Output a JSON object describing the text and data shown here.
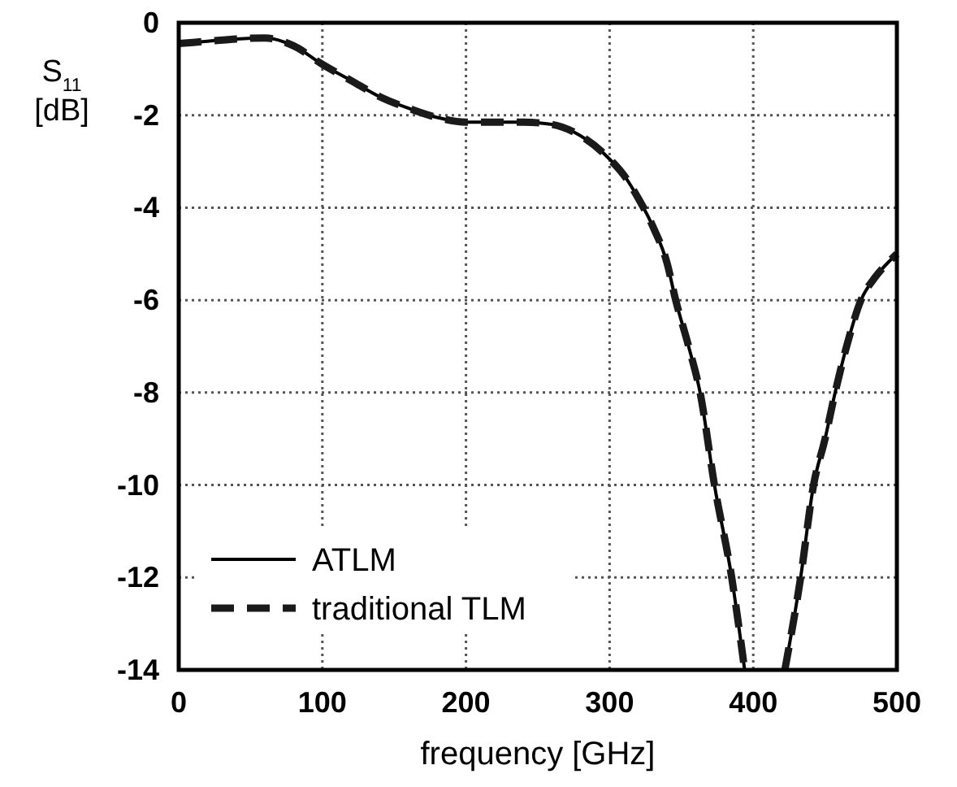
{
  "chart_data": {
    "type": "line",
    "ylabel": "S$_{11}$ [dB]",
    "xlabel": "frequency [GHz]",
    "x": [
      0,
      20,
      40,
      60,
      80,
      100,
      120,
      140,
      160,
      180,
      200,
      220,
      240,
      260,
      280,
      300,
      310,
      320,
      330,
      340,
      346,
      355,
      363,
      373,
      385,
      394,
      410,
      422,
      433,
      442,
      450,
      457,
      465,
      475,
      485,
      495,
      500
    ],
    "series": [
      {
        "name": "ATLM",
        "color": "#000000",
        "line_style": "solid",
        "values": [
          -0.45,
          -0.4,
          -0.35,
          -0.33,
          -0.5,
          -0.9,
          -1.25,
          -1.6,
          -1.85,
          -2.05,
          -2.15,
          -2.15,
          -2.15,
          -2.2,
          -2.45,
          -2.95,
          -3.3,
          -3.8,
          -4.4,
          -5.2,
          -6,
          -7,
          -8,
          -10,
          -12,
          -14,
          null,
          -14,
          -12,
          -10,
          -9,
          -8,
          -7,
          -6,
          -5.5,
          -5.15,
          -5
        ]
      },
      {
        "name": "traditional TLM",
        "color": "#1a1a1a",
        "line_style": "dashed",
        "values": [
          -0.45,
          -0.4,
          -0.35,
          -0.33,
          -0.5,
          -0.9,
          -1.25,
          -1.6,
          -1.85,
          -2.05,
          -2.15,
          -2.15,
          -2.15,
          -2.2,
          -2.45,
          -2.95,
          -3.3,
          -3.8,
          -4.4,
          -5.2,
          -6,
          -7,
          -8,
          -10,
          -12,
          -14,
          null,
          -14,
          -12,
          -10,
          -9,
          -8,
          -7,
          -6,
          -5.5,
          -5.15,
          -5
        ]
      }
    ],
    "xlim": [
      0,
      500
    ],
    "xticks": [
      0,
      100,
      200,
      300,
      400,
      500
    ],
    "ylim": [
      -14,
      0
    ],
    "yticks": [
      -14,
      -12,
      -10,
      -8,
      -6,
      -4,
      -2,
      0
    ],
    "grid": true,
    "legend": "bottom left"
  }
}
